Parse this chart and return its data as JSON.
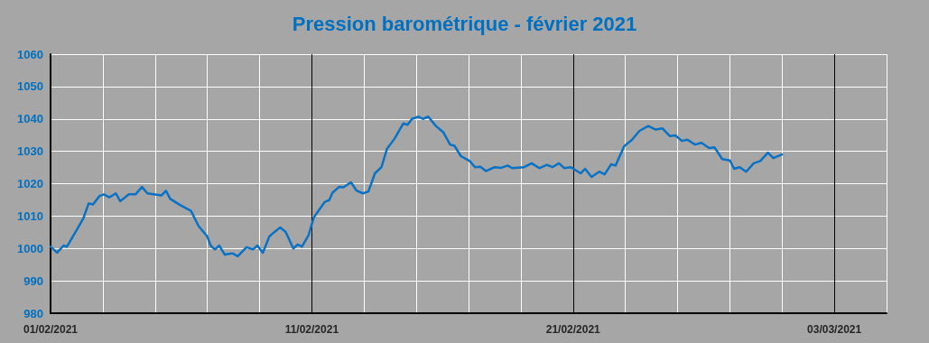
{
  "chart_data": {
    "type": "line",
    "title": "Pression barométrique - février 2021",
    "x": [
      "2021-02-01T00:00",
      "2021-02-01T06:00",
      "2021-02-01T12:00",
      "2021-02-01T15:00",
      "2021-02-01T23:00",
      "2021-02-02T06:00",
      "2021-02-02T11:00",
      "2021-02-02T15:00",
      "2021-02-02T21:00",
      "2021-02-03T01:00",
      "2021-02-03T06:00",
      "2021-02-03T12:00",
      "2021-02-03T16:00",
      "2021-02-04T00:00",
      "2021-02-04T06:00",
      "2021-02-04T12:00",
      "2021-02-04T17:00",
      "2021-02-05T06:00",
      "2021-02-05T10:00",
      "2021-02-05T14:00",
      "2021-02-05T23:00",
      "2021-02-06T09:00",
      "2021-02-06T16:00",
      "2021-02-07T00:00",
      "2021-02-07T03:00",
      "2021-02-07T07:00",
      "2021-02-07T11:00",
      "2021-02-07T16:00",
      "2021-02-07T23:00",
      "2021-02-08T04:00",
      "2021-02-08T12:00",
      "2021-02-08T18:00",
      "2021-02-08T22:00",
      "2021-02-09T03:00",
      "2021-02-09T09:00",
      "2021-02-09T13:00",
      "2021-02-09T19:00",
      "2021-02-10T00:00",
      "2021-02-10T07:00",
      "2021-02-10T11:00",
      "2021-02-10T15:00",
      "2021-02-10T21:00",
      "2021-02-11T02:00",
      "2021-02-11T12:00",
      "2021-02-11T16:00",
      "2021-02-11T19:00",
      "2021-02-12T01:00",
      "2021-02-12T05:00",
      "2021-02-12T12:00",
      "2021-02-12T17:00",
      "2021-02-12T23:00",
      "2021-02-13T04:00",
      "2021-02-13T10:00",
      "2021-02-13T16:00",
      "2021-02-13T21:00",
      "2021-02-14T04:00",
      "2021-02-14T12:00",
      "2021-02-14T16:00",
      "2021-02-14T20:00",
      "2021-02-15T02:00",
      "2021-02-15T06:00",
      "2021-02-15T11:00",
      "2021-02-15T18:00",
      "2021-02-16T01:00",
      "2021-02-16T07:00",
      "2021-02-16T11:00",
      "2021-02-16T17:00",
      "2021-02-17T01:00",
      "2021-02-17T06:00",
      "2021-02-17T11:00",
      "2021-02-17T16:00",
      "2021-02-18T00:00",
      "2021-02-18T06:00",
      "2021-02-18T12:00",
      "2021-02-18T16:00",
      "2021-02-19T03:00",
      "2021-02-19T10:00",
      "2021-02-19T17:00",
      "2021-02-20T00:00",
      "2021-02-20T05:00",
      "2021-02-20T11:00",
      "2021-02-20T16:00",
      "2021-02-20T22:00",
      "2021-02-21T07:00",
      "2021-02-21T11:00",
      "2021-02-21T17:00",
      "2021-02-22T00:00",
      "2021-02-22T05:00",
      "2021-02-22T11:00",
      "2021-02-22T15:00",
      "2021-02-22T23:00",
      "2021-02-23T06:00",
      "2021-02-23T13:00",
      "2021-02-23T21:00",
      "2021-02-24T04:00",
      "2021-02-24T10:00",
      "2021-02-24T17:00",
      "2021-02-24T22:00",
      "2021-02-25T04:00",
      "2021-02-25T09:00",
      "2021-02-25T16:00",
      "2021-02-25T22:00",
      "2021-02-26T05:00",
      "2021-02-26T10:00",
      "2021-02-26T17:00",
      "2021-02-27T00:00",
      "2021-02-27T04:00",
      "2021-02-27T09:00",
      "2021-02-27T15:00",
      "2021-02-27T22:00",
      "2021-02-28T04:00",
      "2021-02-28T11:00",
      "2021-02-28T16:00",
      "2021-03-01T00:00"
    ],
    "series": [
      {
        "color": "#0a72c4",
        "values": [
          1000.6,
          998.7,
          1000.9,
          1000.5,
          1005.1,
          1009.2,
          1013.9,
          1013.6,
          1016.2,
          1016.7,
          1015.8,
          1017.0,
          1014.6,
          1016.7,
          1016.7,
          1019.0,
          1017.0,
          1016.4,
          1017.8,
          1015.3,
          1013.4,
          1011.6,
          1006.9,
          1003.7,
          1000.9,
          999.7,
          1000.9,
          998.1,
          998.5,
          997.6,
          1000.4,
          999.7,
          1000.9,
          998.7,
          1003.7,
          1004.9,
          1006.5,
          1005.1,
          1000.0,
          1001.2,
          1000.6,
          1004.1,
          1009.7,
          1014.4,
          1014.9,
          1017.2,
          1019.0,
          1018.9,
          1020.4,
          1017.9,
          1017.0,
          1017.6,
          1023.2,
          1025.1,
          1030.7,
          1033.9,
          1038.6,
          1038.2,
          1040.0,
          1040.7,
          1040.0,
          1040.7,
          1037.8,
          1035.8,
          1032.1,
          1031.7,
          1028.5,
          1027.0,
          1025.1,
          1025.2,
          1023.9,
          1025.1,
          1024.9,
          1025.6,
          1024.8,
          1025.1,
          1026.3,
          1024.8,
          1025.8,
          1025.1,
          1026.3,
          1024.8,
          1025.1,
          1023.2,
          1024.6,
          1022.1,
          1023.7,
          1022.9,
          1026.0,
          1025.6,
          1031.6,
          1033.5,
          1036.3,
          1037.8,
          1036.7,
          1037.1,
          1034.7,
          1034.9,
          1033.2,
          1033.6,
          1032.1,
          1032.6,
          1031.0,
          1031.2,
          1027.6,
          1027.2,
          1024.6,
          1025.1,
          1023.7,
          1026.3,
          1027.0,
          1029.6,
          1027.9,
          1029.0
        ]
      }
    ],
    "xlim": [
      "2021-02-01",
      "2021-03-05"
    ],
    "xticks": [
      {
        "value": "2021-02-01",
        "label": "01/02/2021"
      },
      {
        "value": "2021-02-03",
        "label": null
      },
      {
        "value": "2021-02-05",
        "label": null
      },
      {
        "value": "2021-02-07",
        "label": null
      },
      {
        "value": "2021-02-09",
        "label": null
      },
      {
        "value": "2021-02-11",
        "label": "11/02/2021"
      },
      {
        "value": "2021-02-13",
        "label": null
      },
      {
        "value": "2021-02-15",
        "label": null
      },
      {
        "value": "2021-02-17",
        "label": null
      },
      {
        "value": "2021-02-19",
        "label": null
      },
      {
        "value": "2021-02-21",
        "label": "21/02/2021"
      },
      {
        "value": "2021-02-23",
        "label": null
      },
      {
        "value": "2021-02-25",
        "label": null
      },
      {
        "value": "2021-02-27",
        "label": null
      },
      {
        "value": "2021-03-01",
        "label": null
      },
      {
        "value": "2021-03-03",
        "label": "03/03/2021"
      },
      {
        "value": "2021-03-05",
        "label": null
      }
    ],
    "ylim": [
      980,
      1060
    ],
    "yticks": [
      980,
      990,
      1000,
      1010,
      1020,
      1030,
      1040,
      1050,
      1060
    ],
    "grid": true,
    "marker": "none",
    "line_style": "solid"
  }
}
